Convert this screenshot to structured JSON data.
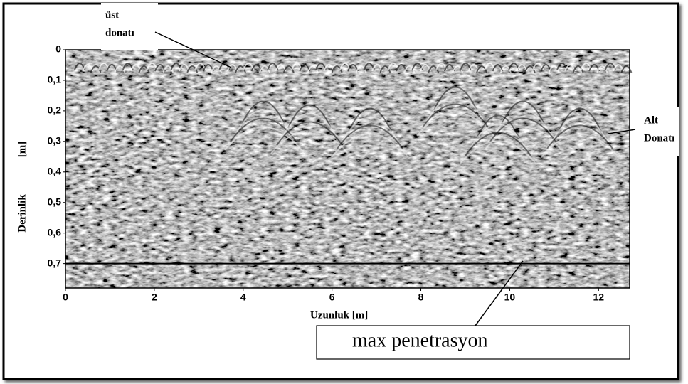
{
  "chart_data": {
    "type": "radargram",
    "xlabel": "Uzunluk [m]",
    "ylabel": "Derinlik",
    "ylabel_unit": "[m]",
    "xlim": [
      0,
      12.7
    ],
    "ylim": [
      0,
      0.78
    ],
    "xticks": [
      0,
      2,
      4,
      6,
      8,
      10,
      12
    ],
    "yticks": [
      0,
      {
        "value": 0.1,
        "label": "0,1"
      },
      {
        "value": 0.2,
        "label": "0,2"
      },
      {
        "value": 0.3,
        "label": "0,3"
      },
      {
        "value": 0.4,
        "label": "0,4"
      },
      {
        "value": 0.5,
        "label": "0,5"
      },
      {
        "value": 0.6,
        "label": "0,6"
      },
      {
        "value": 0.7,
        "label": "0,7"
      }
    ],
    "annotations": [
      {
        "lines": [
          "üst",
          "donatı"
        ]
      },
      {
        "lines": [
          "Alt",
          "Donatı"
        ]
      },
      {
        "text": "max penetrasyon",
        "y": 0.7
      }
    ]
  }
}
